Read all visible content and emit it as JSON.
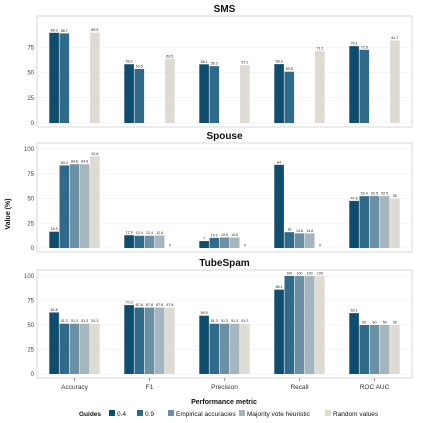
{
  "chart_data": {
    "type": "bar",
    "ylabel": "Value (%)",
    "xlabel": "Performance metric",
    "categories": [
      "Accuracy",
      "F1",
      "Precision",
      "Recall",
      "ROC AUC"
    ],
    "legend": {
      "title": "Guides",
      "placement": "bottom",
      "entries": [
        "0.4",
        "0.9",
        "Empirical accuracies",
        "Majority vote heuristic",
        "Random values"
      ]
    },
    "colors": [
      "#0f4d6e",
      "#2f6a88",
      "#6b8fa3",
      "#a6b6bf",
      "#dddbd4"
    ],
    "panels": [
      {
        "title": "SMS",
        "ylim": [
          0,
          100
        ],
        "yticks": [
          0,
          25,
          50,
          75
        ],
        "series": [
          {
            "values": [
              89.3,
              58.2,
              58.1,
              58.3,
              76.1
            ],
            "labels": [
              "89.3",
              "58.2",
              "58.1",
              "58.3",
              "76.1"
            ]
          },
          {
            "values": [
              88.7,
              53.5,
              56.3,
              50.8,
              72.5
            ],
            "labels": [
              "88.7",
              "53.5",
              "56.3",
              "50.8",
              "72.5"
            ]
          },
          {
            "values": [
              null,
              null,
              null,
              null,
              null
            ],
            "labels": [
              "",
              "",
              "",
              "",
              ""
            ]
          },
          {
            "values": [
              null,
              null,
              null,
              null,
              null
            ],
            "labels": [
              "",
              "",
              "",
              "",
              ""
            ]
          },
          {
            "values": [
              89.5,
              63.5,
              57.2,
              71.2,
              81.7
            ],
            "labels": [
              "89.5",
              "63.5",
              "57.2",
              "71.2",
              "81.7"
            ]
          }
        ]
      },
      {
        "title": "Spouse",
        "ylim": [
          0,
          100
        ],
        "yticks": [
          0,
          25,
          50,
          75,
          100
        ],
        "series": [
          {
            "values": [
              16.5,
              12.9,
              7,
              84,
              47.6
            ],
            "labels": [
              "16.5",
              "12.9",
              "7",
              "84",
              "47.6"
            ]
          },
          {
            "values": [
              83.4,
              12.4,
              10.2,
              16,
              52.4
            ],
            "labels": [
              "83.4",
              "12.4",
              "10.2",
              "16",
              "52.4"
            ]
          },
          {
            "values": [
              84.6,
              12.4,
              10.6,
              14.8,
              52.5
            ],
            "labels": [
              "84.6",
              "12.4",
              "10.6",
              "14.8",
              "52.5"
            ]
          },
          {
            "values": [
              84.6,
              12.6,
              10.6,
              14.8,
              52.5
            ],
            "labels": [
              "84.6",
              "12.6",
              "10.6",
              "14.8",
              "52.5"
            ]
          },
          {
            "values": [
              92.6,
              0,
              0,
              0,
              50
            ],
            "labels": [
              "92.6",
              "0",
              "0",
              "0",
              "50"
            ]
          }
        ]
      },
      {
        "title": "TubeSpam",
        "ylim": [
          0,
          100
        ],
        "yticks": [
          0,
          25,
          50,
          75,
          100
        ],
        "series": [
          {
            "values": [
              62.8,
              70.3,
              59.5,
              86.1,
              62.1
            ],
            "labels": [
              "62.8",
              "70.3",
              "59.5",
              "86.1",
              "62.1"
            ]
          },
          {
            "values": [
              51.3,
              67.8,
              51.3,
              100,
              50
            ],
            "labels": [
              "51.3",
              "67.8",
              "51.3",
              "100",
              "50"
            ]
          },
          {
            "values": [
              51.3,
              67.8,
              51.3,
              100,
              50
            ],
            "labels": [
              "51.3",
              "67.8",
              "51.3",
              "100",
              "50"
            ]
          },
          {
            "values": [
              51.3,
              67.8,
              51.3,
              100,
              50
            ],
            "labels": [
              "51.3",
              "67.8",
              "51.3",
              "100",
              "50"
            ]
          },
          {
            "values": [
              51.3,
              67.8,
              51.3,
              100,
              50
            ],
            "labels": [
              "51.3",
              "67.8",
              "51.3",
              "100",
              "50"
            ]
          }
        ]
      }
    ]
  }
}
